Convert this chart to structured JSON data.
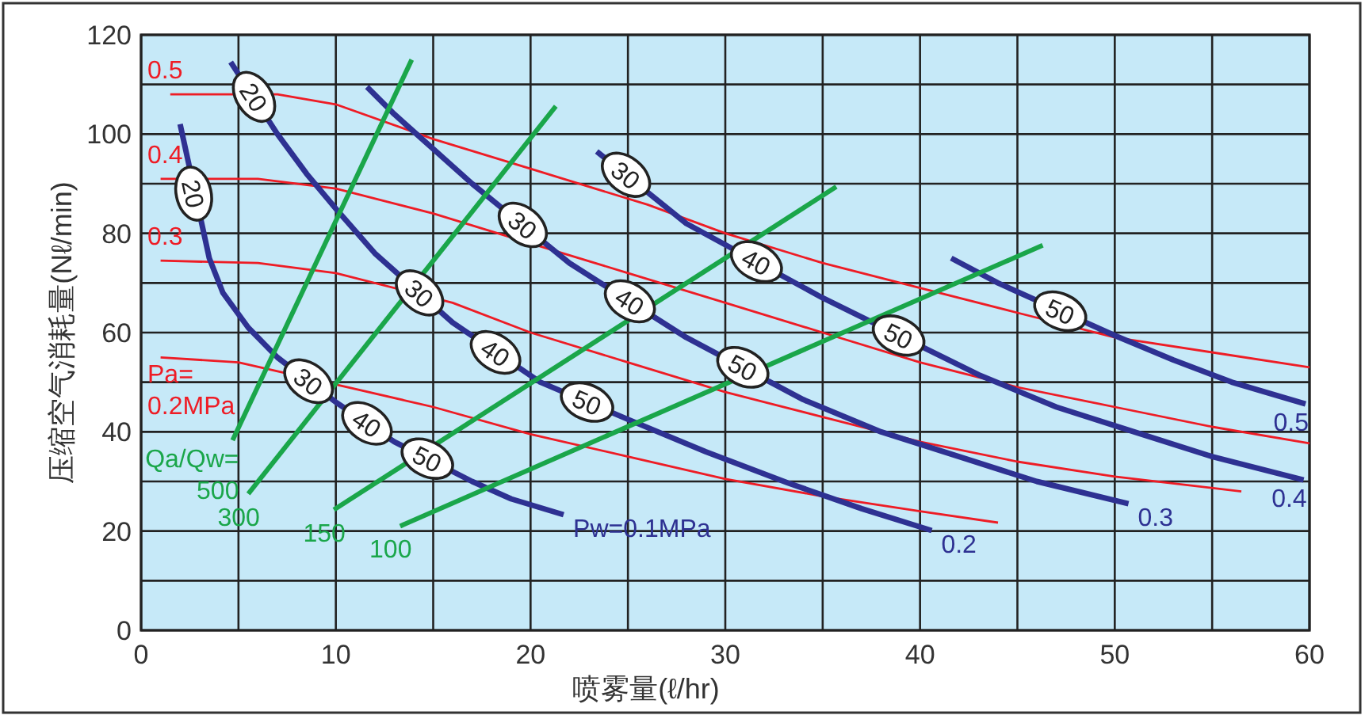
{
  "chart_data": {
    "type": "line",
    "xlabel": "喷雾量(ℓ/hr)",
    "ylabel": "压缩空气消耗量(Nℓ/min)",
    "xlim": [
      0,
      60
    ],
    "ylim": [
      0,
      120
    ],
    "xticks": [
      0,
      {
        "value": 5,
        "label": null
      },
      10,
      {
        "value": 15,
        "label": null
      },
      20,
      {
        "value": 25,
        "label": null
      },
      30,
      {
        "value": 35,
        "label": null
      },
      40,
      {
        "value": 45,
        "label": null
      },
      50,
      {
        "value": 55,
        "label": null
      },
      60
    ],
    "yticks": [
      0,
      {
        "value": 10,
        "label": null
      },
      20,
      {
        "value": 30,
        "label": null
      },
      40,
      {
        "value": 50,
        "label": null
      },
      60,
      {
        "value": 70,
        "label": null
      },
      80,
      {
        "value": 90,
        "label": null
      },
      100,
      {
        "value": 110,
        "label": null
      },
      120
    ],
    "grid": true,
    "legend": false,
    "marker": "none",
    "line_style": "solid",
    "series": [
      {
        "name": "Pa=0.2MPa",
        "color": "#ee1c25",
        "x": [
          1,
          5,
          10.8,
          15,
          20,
          25,
          30,
          35,
          40,
          44
        ],
        "values": [
          55,
          54,
          48.8,
          45,
          39.5,
          35,
          30.5,
          27,
          24,
          21.7
        ]
      },
      {
        "name": "0.3",
        "color": "#ee1c25",
        "x": [
          1,
          6,
          10,
          16,
          20,
          25,
          30,
          35,
          40,
          45,
          50,
          56.5
        ],
        "values": [
          74.5,
          74,
          72,
          66,
          60,
          54,
          48,
          43,
          38,
          34,
          31,
          28
        ]
      },
      {
        "name": "0.4",
        "color": "#ee1c25",
        "x": [
          1,
          6,
          10,
          15,
          21,
          25,
          30,
          35,
          40,
          45,
          50,
          55,
          60
        ],
        "values": [
          91,
          91,
          89,
          84,
          76.8,
          72,
          66,
          60,
          54,
          49,
          45,
          41,
          37.7
        ]
      },
      {
        "name": "0.5",
        "color": "#ee1c25",
        "x": [
          1.5,
          7,
          10,
          15,
          20,
          26,
          30,
          35,
          40,
          45,
          50,
          55,
          60
        ],
        "values": [
          108,
          108,
          106,
          99,
          93,
          85.8,
          80,
          74,
          69,
          64,
          59,
          56,
          53
        ]
      },
      {
        "name": "Pw=0.1MPa",
        "color": "#2e3192",
        "x": [
          2,
          3.5,
          4.2,
          5.5,
          7,
          10,
          13,
          17,
          19,
          21.7
        ],
        "values": [
          102,
          75,
          68,
          61,
          55,
          46,
          38,
          30,
          26.5,
          23.3
        ]
      },
      {
        "name": "0.2",
        "color": "#2e3192",
        "x": [
          4.6,
          7,
          8.5,
          10,
          12,
          16,
          20.5,
          25,
          29,
          33.2,
          37,
          40.6
        ],
        "values": [
          114.5,
          100,
          92,
          85,
          76,
          62,
          50,
          42.5,
          36,
          29.7,
          24.5,
          20.1
        ]
      },
      {
        "name": "0.3",
        "color": "#2e3192",
        "x": [
          11.6,
          13,
          15,
          17,
          22,
          28,
          34,
          38,
          42,
          46,
          50.7
        ],
        "values": [
          109.5,
          104,
          97,
          90,
          74,
          59,
          46.5,
          40,
          35,
          30,
          25.5
        ]
      },
      {
        "name": "0.4",
        "color": "#2e3192",
        "x": [
          23.4,
          28,
          35,
          43,
          47,
          51,
          55,
          59.7
        ],
        "values": [
          96.5,
          82,
          67,
          51.5,
          45,
          40,
          35,
          30.3
        ]
      },
      {
        "name": "0.5",
        "color": "#2e3192",
        "x": [
          41.6,
          44,
          50,
          53,
          56,
          59.8
        ],
        "values": [
          75,
          70,
          59.4,
          54.5,
          50,
          45.6
        ]
      },
      {
        "name": "Qa/Qw=500",
        "color": "#1aa64a",
        "x": [
          4.7,
          13.9
        ],
        "values": [
          38.3,
          115
        ]
      },
      {
        "name": "300",
        "color": "#1aa64a",
        "x": [
          5.5,
          21.3
        ],
        "values": [
          27.5,
          105.6
        ]
      },
      {
        "name": "150",
        "color": "#1aa64a",
        "x": [
          9.9,
          35.7
        ],
        "values": [
          24.3,
          89.4
        ]
      },
      {
        "name": "100",
        "color": "#1aa64a",
        "x": [
          13.3,
          46.3
        ],
        "values": [
          21,
          77.6
        ]
      }
    ],
    "annotations": [
      {
        "text": "20",
        "x": 2.7,
        "y": 88
      },
      {
        "text": "30",
        "x": 8.6,
        "y": 50.2
      },
      {
        "text": "40",
        "x": 11.6,
        "y": 41.7
      },
      {
        "text": "50",
        "x": 14.7,
        "y": 34.6
      },
      {
        "text": "20",
        "x": 5.8,
        "y": 107.5
      },
      {
        "text": "30",
        "x": 14.3,
        "y": 68
      },
      {
        "text": "40",
        "x": 18.2,
        "y": 56
      },
      {
        "text": "50",
        "x": 22.9,
        "y": 46
      },
      {
        "text": "30",
        "x": 19.6,
        "y": 81.7
      },
      {
        "text": "40",
        "x": 25.1,
        "y": 66.3
      },
      {
        "text": "50",
        "x": 30.9,
        "y": 53
      },
      {
        "text": "30",
        "x": 24.9,
        "y": 91.8
      },
      {
        "text": "40",
        "x": 31.6,
        "y": 74.3
      },
      {
        "text": "50",
        "x": 38.9,
        "y": 59.4
      },
      {
        "text": "50",
        "x": 47.2,
        "y": 64.3
      }
    ]
  }
}
